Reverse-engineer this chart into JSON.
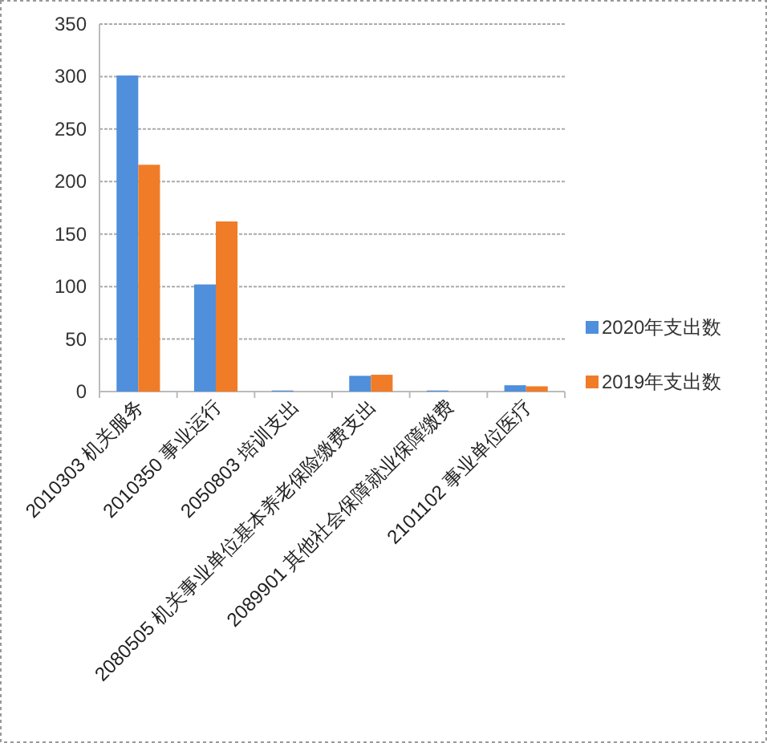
{
  "chart_data": {
    "type": "bar",
    "categories": [
      "2010303 机关服务",
      "2010350 事业运行",
      "2050803 培训支出",
      "2080505 机关事业单位基本养老保险缴费支出",
      "2089901 其他社会保障就业保障缴费",
      "2101102 事业单位医疗"
    ],
    "series": [
      {
        "name": "2020年支出数",
        "color": "#4f8fdc",
        "values": [
          301,
          102,
          1,
          15,
          1,
          6
        ]
      },
      {
        "name": "2019年支出数",
        "color": "#f07c28",
        "values": [
          216,
          162,
          0,
          16,
          0,
          5
        ]
      }
    ],
    "ylim": [
      0,
      350
    ],
    "yticks": [
      0,
      50,
      100,
      150,
      200,
      250,
      300,
      350
    ],
    "grid": "y",
    "legend": "right"
  }
}
